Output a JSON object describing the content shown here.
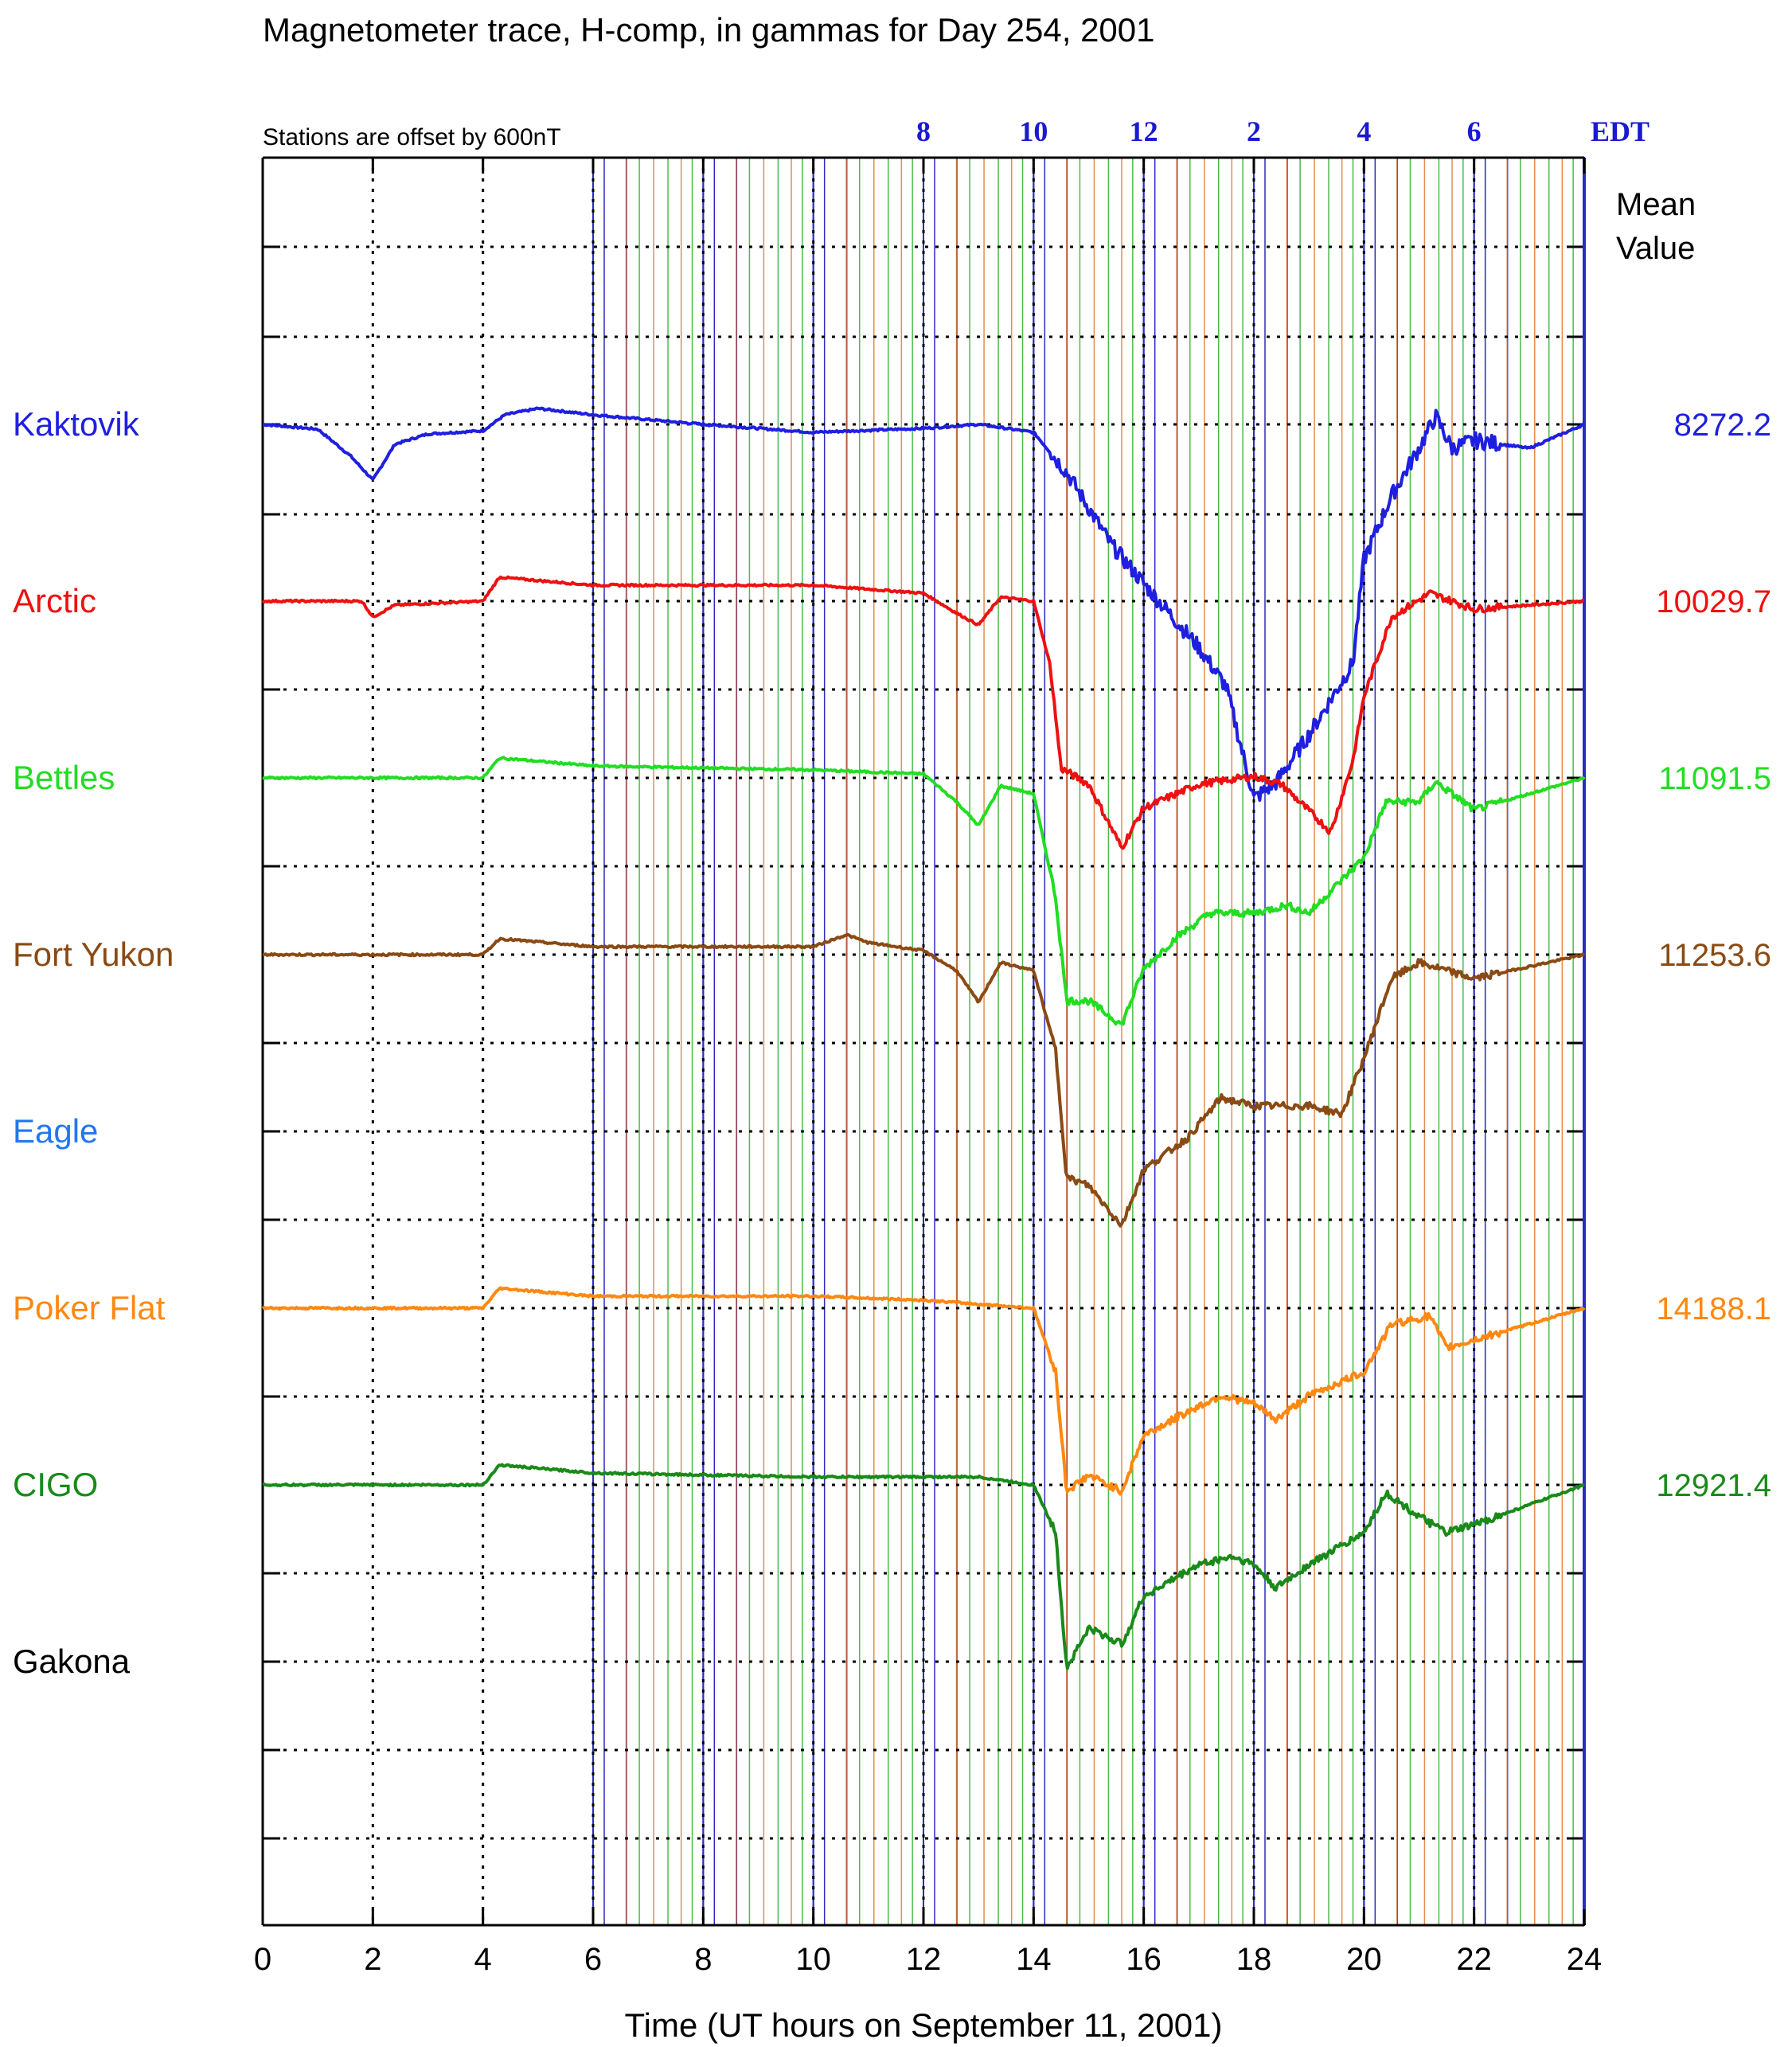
{
  "chart_data": {
    "type": "line",
    "title": "Magnetometer trace, H-comp, in gammas for Day 254, 2001",
    "offset_note": "Stations are offset by  600nT",
    "xlabel": "Time (UT hours on September 11, 2001)",
    "xlim": [
      0,
      24
    ],
    "x_ticks": [
      "0",
      "2",
      "4",
      "6",
      "8",
      "10",
      "12",
      "14",
      "16",
      "18",
      "20",
      "22",
      "24"
    ],
    "edt_labels": [
      {
        "x": 12,
        "label": "8"
      },
      {
        "x": 14,
        "label": "10"
      },
      {
        "x": 16,
        "label": "12"
      },
      {
        "x": 18,
        "label": "2"
      },
      {
        "x": 20,
        "label": "4"
      },
      {
        "x": 22,
        "label": "6"
      },
      {
        "x": 24,
        "label": "EDT"
      }
    ],
    "mean_header": [
      "Mean",
      "Value"
    ],
    "grid": true,
    "series": [
      {
        "name": "Kaktovik",
        "color": "#1f1fe0",
        "mean": "8272.2",
        "points": [
          [
            0,
            0
          ],
          [
            1,
            -6
          ],
          [
            1.6,
            -40
          ],
          [
            2,
            -70
          ],
          [
            2.4,
            -25
          ],
          [
            3,
            -12
          ],
          [
            4,
            -8
          ],
          [
            4.4,
            12
          ],
          [
            5,
            20
          ],
          [
            6,
            12
          ],
          [
            8,
            0
          ],
          [
            10,
            -10
          ],
          [
            12,
            -5
          ],
          [
            13,
            0
          ],
          [
            14,
            -10
          ],
          [
            14.6,
            -60
          ],
          [
            15.4,
            -150
          ],
          [
            16,
            -200
          ],
          [
            17,
            -280
          ],
          [
            17.5,
            -330
          ],
          [
            18,
            -470
          ],
          [
            18.4,
            -450
          ],
          [
            19,
            -390
          ],
          [
            19.8,
            -300
          ],
          [
            20,
            -170
          ],
          [
            20.5,
            -90
          ],
          [
            21,
            -30
          ],
          [
            21.3,
            10
          ],
          [
            21.6,
            -30
          ],
          [
            22,
            -20
          ],
          [
            23,
            -30
          ],
          [
            24,
            0
          ]
        ]
      },
      {
        "name": "Arctic",
        "color": "#ee1111",
        "mean": "10029.7",
        "points": [
          [
            0,
            0
          ],
          [
            1.8,
            0
          ],
          [
            2,
            -20
          ],
          [
            2.4,
            -5
          ],
          [
            4,
            0
          ],
          [
            4.3,
            30
          ],
          [
            6,
            20
          ],
          [
            10,
            20
          ],
          [
            12,
            10
          ],
          [
            12.6,
            -15
          ],
          [
            13,
            -30
          ],
          [
            13.4,
            5
          ],
          [
            14,
            0
          ],
          [
            14.3,
            -80
          ],
          [
            14.5,
            -210
          ],
          [
            15,
            -230
          ],
          [
            15.6,
            -310
          ],
          [
            16,
            -260
          ],
          [
            17,
            -230
          ],
          [
            18,
            -220
          ],
          [
            18.5,
            -230
          ],
          [
            19.4,
            -290
          ],
          [
            19.8,
            -200
          ],
          [
            20,
            -120
          ],
          [
            20.5,
            -20
          ],
          [
            21.2,
            10
          ],
          [
            22,
            -10
          ],
          [
            24,
            0
          ]
        ]
      },
      {
        "name": "Bettles",
        "color": "#22dd22",
        "mean": "11091.5",
        "points": [
          [
            0,
            0
          ],
          [
            2,
            0
          ],
          [
            4,
            0
          ],
          [
            4.3,
            25
          ],
          [
            6,
            15
          ],
          [
            10,
            10
          ],
          [
            12,
            5
          ],
          [
            12.6,
            -30
          ],
          [
            13,
            -60
          ],
          [
            13.4,
            -10
          ],
          [
            14,
            -20
          ],
          [
            14.4,
            -150
          ],
          [
            14.6,
            -280
          ],
          [
            15,
            -280
          ],
          [
            15.6,
            -310
          ],
          [
            16,
            -240
          ],
          [
            16.6,
            -200
          ],
          [
            17.2,
            -170
          ],
          [
            18,
            -170
          ],
          [
            18.6,
            -160
          ],
          [
            19,
            -170
          ],
          [
            20,
            -100
          ],
          [
            20.4,
            -30
          ],
          [
            21,
            -30
          ],
          [
            21.3,
            -5
          ],
          [
            22,
            -40
          ],
          [
            24,
            0
          ]
        ]
      },
      {
        "name": "Fort Yukon",
        "color": "#8a4a14",
        "mean": "11253.6",
        "points": [
          [
            0,
            0
          ],
          [
            2,
            0
          ],
          [
            4,
            0
          ],
          [
            4.3,
            20
          ],
          [
            6,
            10
          ],
          [
            10,
            10
          ],
          [
            10.6,
            25
          ],
          [
            11,
            15
          ],
          [
            12,
            5
          ],
          [
            12.6,
            -20
          ],
          [
            13,
            -60
          ],
          [
            13.4,
            -10
          ],
          [
            14,
            -20
          ],
          [
            14.4,
            -120
          ],
          [
            14.6,
            -280
          ],
          [
            15,
            -290
          ],
          [
            15.6,
            -340
          ],
          [
            16,
            -270
          ],
          [
            16.8,
            -230
          ],
          [
            17.4,
            -180
          ],
          [
            18,
            -190
          ],
          [
            19,
            -190
          ],
          [
            19.6,
            -200
          ],
          [
            20,
            -130
          ],
          [
            20.5,
            -30
          ],
          [
            21,
            -10
          ],
          [
            22,
            -30
          ],
          [
            24,
            0
          ]
        ]
      },
      {
        "name": "Eagle",
        "color": "#2277ee",
        "mean": "",
        "points": []
      },
      {
        "name": "Poker Flat",
        "color": "#ff8811",
        "mean": "14188.1",
        "points": [
          [
            0,
            0
          ],
          [
            2,
            0
          ],
          [
            4,
            0
          ],
          [
            4.3,
            25
          ],
          [
            6,
            15
          ],
          [
            10,
            15
          ],
          [
            12,
            10
          ],
          [
            13,
            5
          ],
          [
            14,
            0
          ],
          [
            14.4,
            -80
          ],
          [
            14.6,
            -230
          ],
          [
            15,
            -210
          ],
          [
            15.6,
            -230
          ],
          [
            16,
            -160
          ],
          [
            16.8,
            -130
          ],
          [
            17.4,
            -110
          ],
          [
            18,
            -120
          ],
          [
            18.4,
            -140
          ],
          [
            19,
            -110
          ],
          [
            20,
            -80
          ],
          [
            20.5,
            -20
          ],
          [
            21.2,
            -10
          ],
          [
            21.5,
            -50
          ],
          [
            22,
            -40
          ],
          [
            24,
            0
          ]
        ]
      },
      {
        "name": "CIGO",
        "color": "#198a19",
        "mean": "12921.4",
        "points": [
          [
            0,
            0
          ],
          [
            2,
            0
          ],
          [
            4,
            0
          ],
          [
            4.3,
            25
          ],
          [
            6,
            15
          ],
          [
            10,
            10
          ],
          [
            12,
            10
          ],
          [
            13,
            10
          ],
          [
            14,
            0
          ],
          [
            14.4,
            -60
          ],
          [
            14.6,
            -230
          ],
          [
            15,
            -180
          ],
          [
            15.6,
            -200
          ],
          [
            16,
            -140
          ],
          [
            17,
            -100
          ],
          [
            17.6,
            -90
          ],
          [
            18,
            -100
          ],
          [
            18.4,
            -130
          ],
          [
            19,
            -100
          ],
          [
            20,
            -60
          ],
          [
            20.4,
            -10
          ],
          [
            21,
            -40
          ],
          [
            21.5,
            -60
          ],
          [
            22,
            -50
          ],
          [
            24,
            0
          ]
        ]
      },
      {
        "name": "Gakona",
        "color": "#000000",
        "mean": "",
        "points": []
      }
    ]
  }
}
